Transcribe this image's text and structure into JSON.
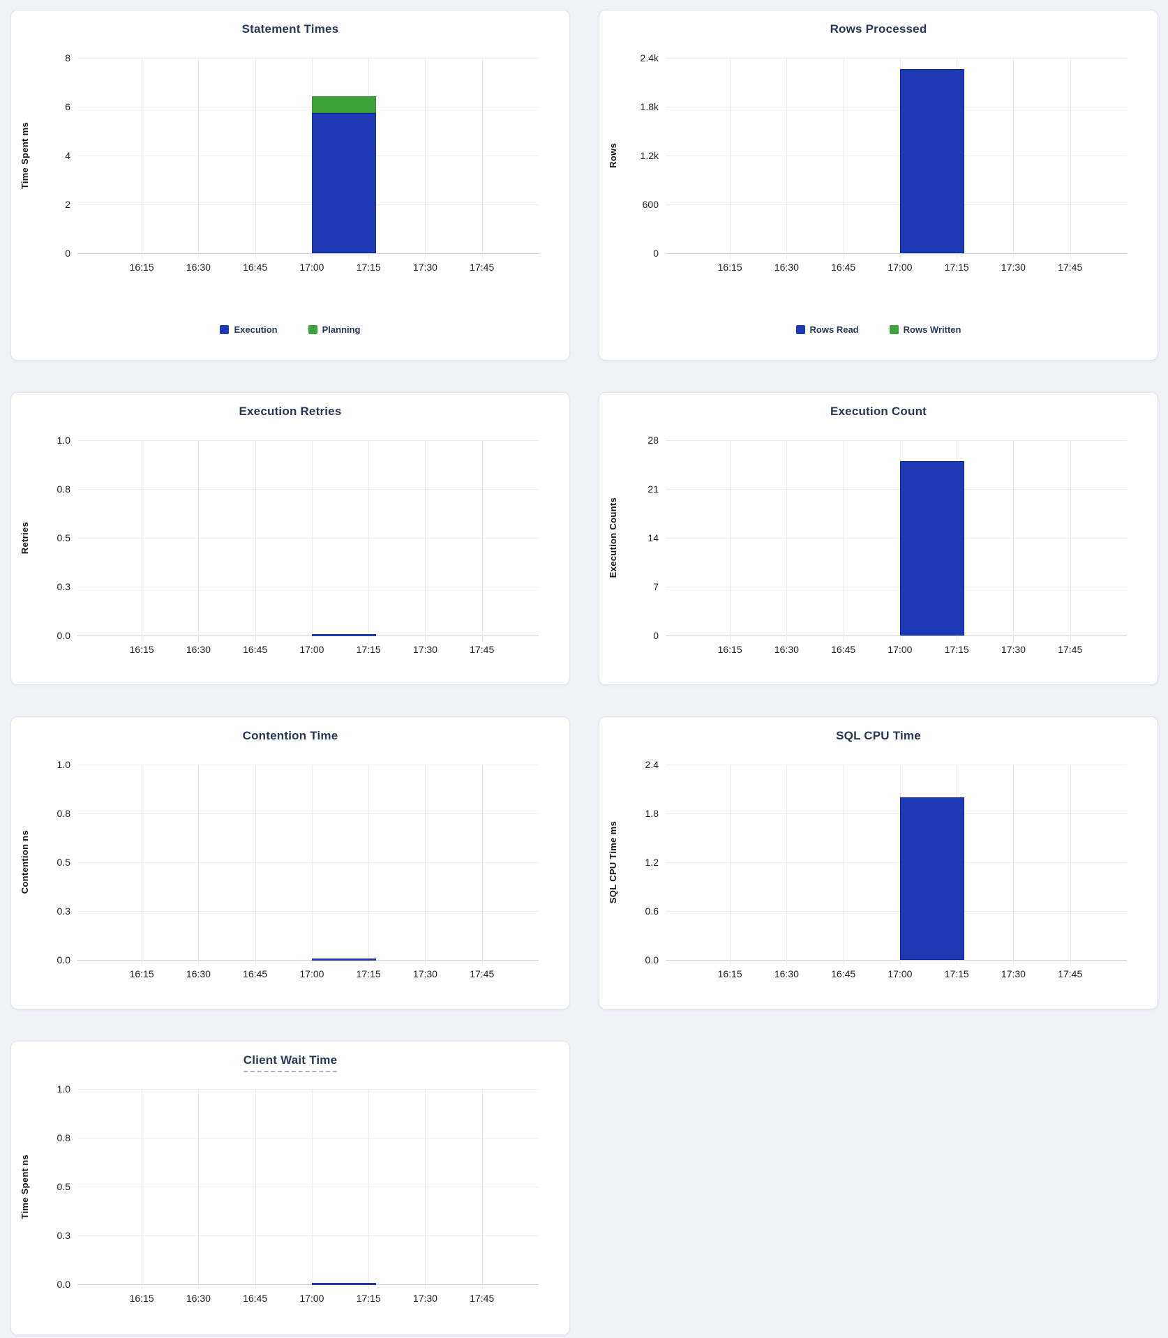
{
  "page": {
    "background": "#eff3f7",
    "card_background": "#ffffff"
  },
  "colors": {
    "bar_blue": "#1d39b4",
    "bar_blue_border": "#10239b",
    "bar_green": "#3fa33c",
    "bar_green_border": "#2e8f2b",
    "line_blue": "#1d39b4",
    "title_navy": "#26375b",
    "grid_light": "#ebedf0",
    "axis_line": "#cfd3d7"
  },
  "chart_data": [
    {
      "type": "bar",
      "title": "Statement Times",
      "ylabel": "Time Spent ms",
      "ylim": [
        0,
        8
      ],
      "ytick_labels": [
        "8",
        "6",
        "4",
        "2",
        "0"
      ],
      "x_domain": [
        "15:58",
        "18:00"
      ],
      "xticks": [
        "16:15",
        "16:30",
        "16:45",
        "17:00",
        "17:15",
        "17:30",
        "17:45"
      ],
      "bar_span": [
        "17:00",
        "17:17"
      ],
      "series": [
        {
          "name": "Execution",
          "value": 5.75,
          "color": "#1d39b4",
          "border": "#10239b"
        },
        {
          "name": "Planning",
          "value": 0.68,
          "color": "#3fa33c",
          "border": "#2e8f2b"
        }
      ],
      "legend": [
        {
          "label": "Execution",
          "color": "#1d39b4"
        },
        {
          "label": "Planning",
          "color": "#3fa33c"
        }
      ]
    },
    {
      "type": "bar",
      "title": "Rows Processed",
      "ylabel": "Rows",
      "ylim": [
        0,
        2400
      ],
      "ytick_labels": [
        "2.4k",
        "1.8k",
        "1.2k",
        "600",
        "0"
      ],
      "x_domain": [
        "15:58",
        "18:00"
      ],
      "xticks": [
        "16:15",
        "16:30",
        "16:45",
        "17:00",
        "17:15",
        "17:30",
        "17:45"
      ],
      "bar_span": [
        "17:00",
        "17:17"
      ],
      "series": [
        {
          "name": "Rows Read",
          "value": 2260,
          "color": "#1d39b4",
          "border": "#10239b"
        },
        {
          "name": "Rows Written",
          "value": 0,
          "color": "#3fa33c",
          "border": "#2e8f2b"
        }
      ],
      "legend": [
        {
          "label": "Rows Read",
          "color": "#1d39b4"
        },
        {
          "label": "Rows Written",
          "color": "#3fa33c"
        }
      ]
    },
    {
      "type": "line",
      "title": "Execution Retries",
      "ylabel": "Retries",
      "ylim": [
        0,
        1
      ],
      "ytick_labels": [
        "1.0",
        "0.8",
        "0.5",
        "0.3",
        "0.0"
      ],
      "x_domain": [
        "15:58",
        "18:00"
      ],
      "xticks": [
        "16:15",
        "16:30",
        "16:45",
        "17:00",
        "17:15",
        "17:30",
        "17:45"
      ],
      "line_span": [
        "17:00",
        "17:17"
      ],
      "line_value": 0,
      "series": [
        {
          "value": 0,
          "color": "#1d39b4"
        }
      ]
    },
    {
      "type": "bar",
      "title": "Execution Count",
      "ylabel": "Execution Counts",
      "ylim": [
        0,
        28
      ],
      "ytick_labels": [
        "28",
        "21",
        "14",
        "7",
        "0"
      ],
      "x_domain": [
        "15:58",
        "18:00"
      ],
      "xticks": [
        "16:15",
        "16:30",
        "16:45",
        "17:00",
        "17:15",
        "17:30",
        "17:45"
      ],
      "bar_span": [
        "17:00",
        "17:17"
      ],
      "series": [
        {
          "value": 25,
          "color": "#1d39b4",
          "border": "#10239b"
        }
      ]
    },
    {
      "type": "line",
      "title": "Contention Time",
      "ylabel": "Contention ns",
      "ylim": [
        0,
        1
      ],
      "ytick_labels": [
        "1.0",
        "0.8",
        "0.5",
        "0.3",
        "0.0"
      ],
      "x_domain": [
        "15:58",
        "18:00"
      ],
      "xticks": [
        "16:15",
        "16:30",
        "16:45",
        "17:00",
        "17:15",
        "17:30",
        "17:45"
      ],
      "line_span": [
        "17:00",
        "17:17"
      ],
      "line_value": 0,
      "series": [
        {
          "value": 0,
          "color": "#1d39b4"
        }
      ]
    },
    {
      "type": "bar",
      "title": "SQL CPU Time",
      "ylabel": "SQL CPU Time ms",
      "ylim": [
        0,
        2.4
      ],
      "ytick_labels": [
        "2.4",
        "1.8",
        "1.2",
        "0.6",
        "0.0"
      ],
      "x_domain": [
        "15:58",
        "18:00"
      ],
      "xticks": [
        "16:15",
        "16:30",
        "16:45",
        "17:00",
        "17:15",
        "17:30",
        "17:45"
      ],
      "bar_span": [
        "17:00",
        "17:17"
      ],
      "series": [
        {
          "value": 2.0,
          "color": "#1d39b4",
          "border": "#10239b"
        }
      ]
    },
    {
      "type": "line",
      "title": "Client Wait Time",
      "title_help_underline": true,
      "ylabel": "Time Spent ns",
      "ylim": [
        0,
        1
      ],
      "ytick_labels": [
        "1.0",
        "0.8",
        "0.5",
        "0.3",
        "0.0"
      ],
      "x_domain": [
        "15:58",
        "18:00"
      ],
      "xticks": [
        "16:15",
        "16:30",
        "16:45",
        "17:00",
        "17:15",
        "17:30",
        "17:45"
      ],
      "line_span": [
        "17:00",
        "17:17"
      ],
      "line_value": 0,
      "series": [
        {
          "value": 0,
          "color": "#1d39b4"
        }
      ]
    }
  ]
}
